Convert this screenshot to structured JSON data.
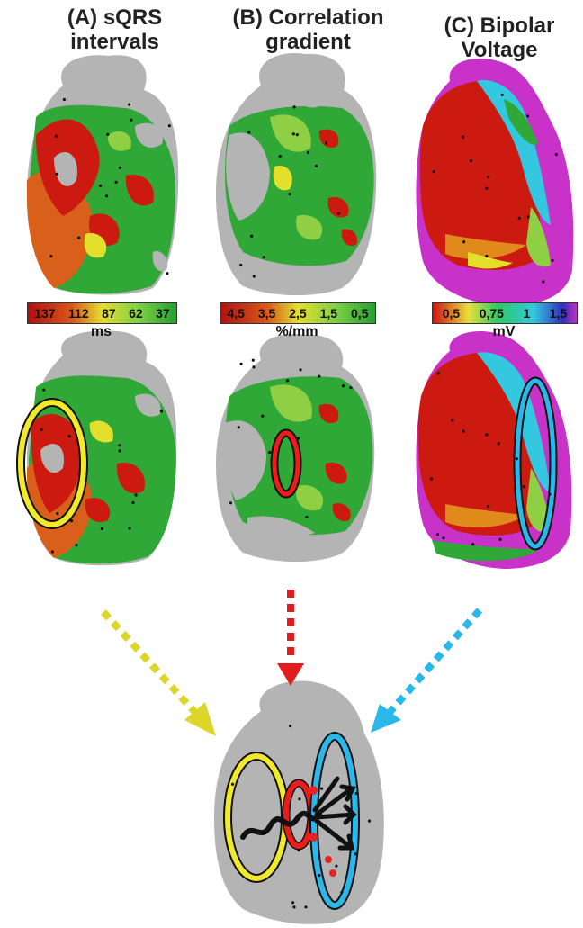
{
  "panels": [
    {
      "title": "(A) sQRS\nintervals",
      "unit": "ms",
      "ticks": [
        "137",
        "112",
        "87",
        "62",
        "37"
      ]
    },
    {
      "title": "(B) Correlation\ngradient",
      "unit": "%/mm",
      "ticks": [
        "4,5",
        "3,5",
        "2,5",
        "1,5",
        "0,5"
      ]
    },
    {
      "title": "(C) Bipolar\nVoltage",
      "unit": "mV",
      "ticks": [
        "0,5",
        "0,75",
        "1",
        "1,5"
      ]
    }
  ],
  "colors": {
    "map_gray": "#b4b4b4",
    "red": "#cc1a10",
    "orange": "#e08a1c",
    "yellow": "#e3df2d",
    "green": "#2fa838",
    "light_green": "#8fcf43",
    "magenta": "#c832c8",
    "cyan": "#3cc8e6",
    "blue_highlight": "#2ab7ea",
    "yellow_highlight": "#f2e92a",
    "red_highlight": "#ee1b1b"
  }
}
